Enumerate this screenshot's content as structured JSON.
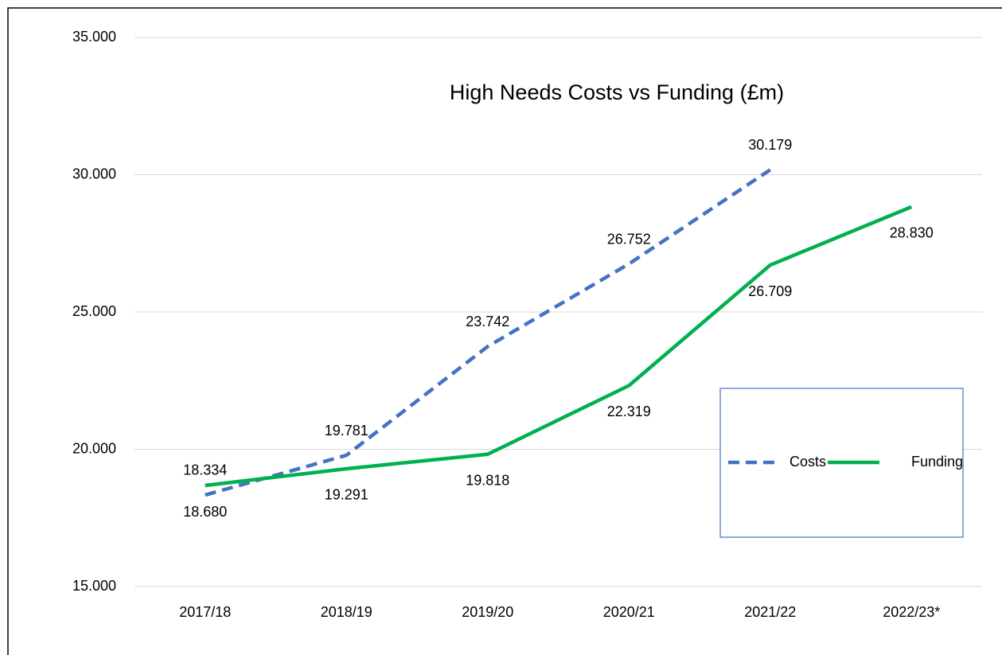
{
  "chart_data": {
    "type": "line",
    "title": "High Needs Costs vs Funding (£m)",
    "categories": [
      "2017/18",
      "2018/19",
      "2019/20",
      "2020/21",
      "2021/22",
      "2022/23*"
    ],
    "series": [
      {
        "name": "Costs",
        "color": "#4472c4",
        "dashed": true,
        "values": [
          18.334,
          19.781,
          23.742,
          26.752,
          30.179,
          null
        ],
        "value_labels": [
          "18.334",
          "19.781",
          "23.742",
          "26.752",
          "30.179",
          null
        ]
      },
      {
        "name": "Funding",
        "color": "#00b050",
        "dashed": false,
        "values": [
          18.68,
          19.291,
          19.818,
          22.319,
          26.709,
          28.83
        ],
        "value_labels": [
          "18.680",
          "19.291",
          "19.818",
          "22.319",
          "26.709",
          "28.830"
        ]
      }
    ],
    "ylim": [
      15,
      35
    ],
    "yticks": [
      {
        "value": 15,
        "label": "15.000"
      },
      {
        "value": 20,
        "label": "20.000"
      },
      {
        "value": 25,
        "label": "25.000"
      },
      {
        "value": 30,
        "label": "30.000"
      },
      {
        "value": 35,
        "label": "35.000"
      }
    ],
    "grid": true,
    "legend": "right"
  }
}
